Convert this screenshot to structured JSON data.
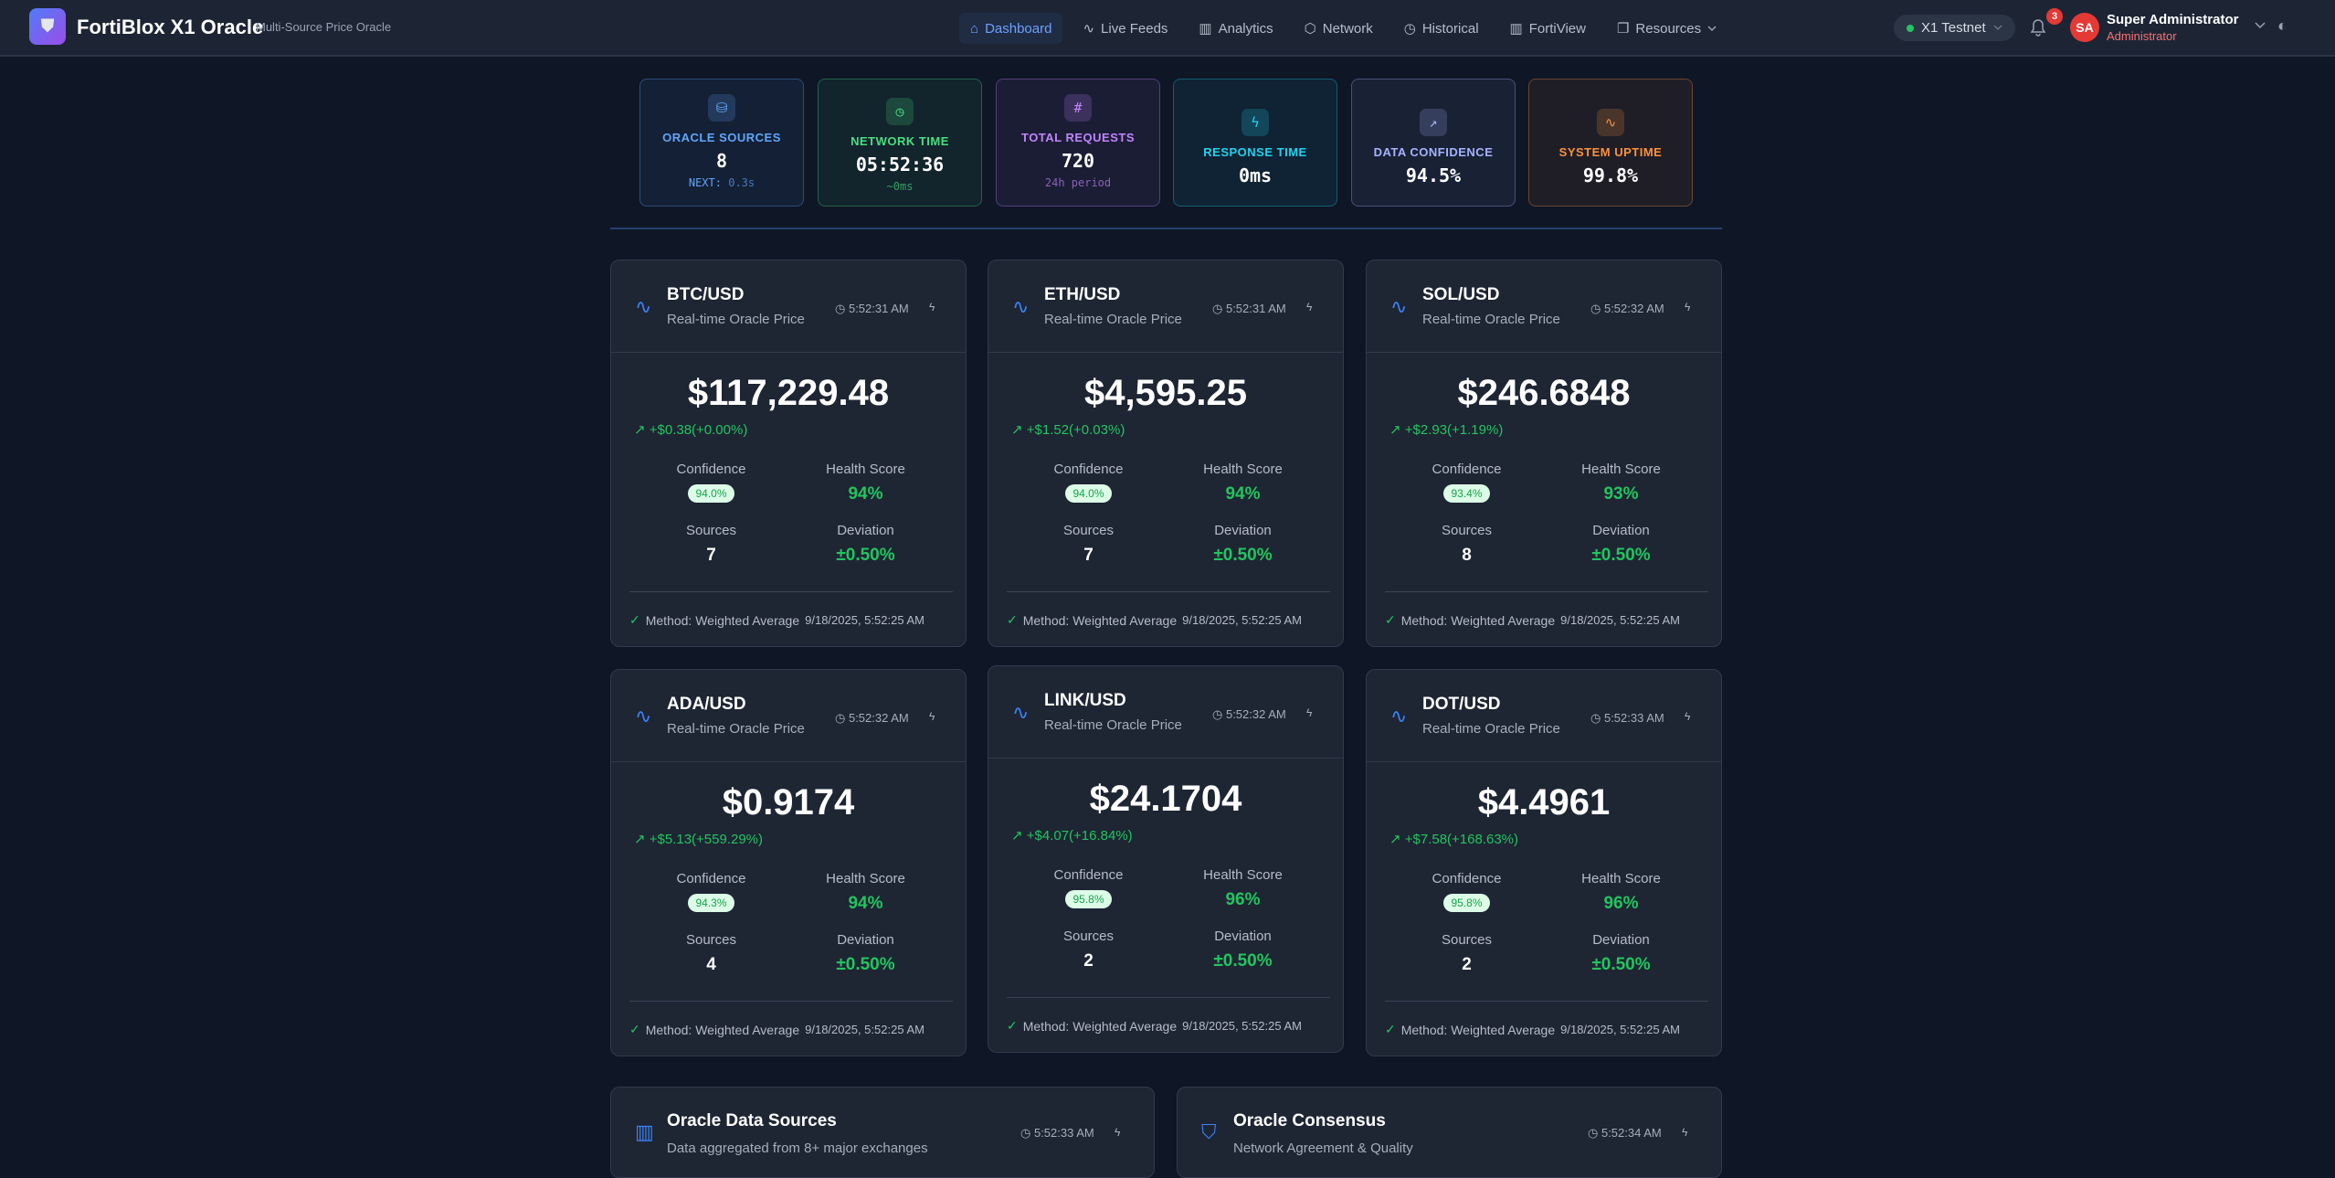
{
  "header": {
    "brand": "FortiBlox X1 Oracle",
    "tagline": "Multi-Source Price Oracle",
    "nav": [
      {
        "label": "Dashboard",
        "icon": "⌂"
      },
      {
        "label": "Live Feeds",
        "icon": "∿"
      },
      {
        "label": "Analytics",
        "icon": "▥"
      },
      {
        "label": "Network",
        "icon": "⬡"
      },
      {
        "label": "Historical",
        "icon": "◷"
      },
      {
        "label": "FortiView",
        "icon": "▥"
      },
      {
        "label": "Resources",
        "icon": "❐"
      }
    ],
    "network": "X1 Testnet",
    "notifications": "3",
    "avatar": "SA",
    "user_name": "Super Administrator",
    "user_role": "Administrator"
  },
  "stats": [
    {
      "label": "ORACLE SOURCES",
      "value": "8",
      "sub_label": "NEXT:",
      "sub_value": "0.3s",
      "color": "#60a5fa",
      "icon": "database"
    },
    {
      "label": "NETWORK TIME",
      "value": "05:52:36",
      "sub_label": "",
      "sub_value": "~0ms",
      "color": "#4ade80",
      "icon": "clock"
    },
    {
      "label": "TOTAL REQUESTS",
      "value": "720",
      "sub_label": "",
      "sub_value": "24h period",
      "color": "#c084fc",
      "icon": "hash"
    },
    {
      "label": "RESPONSE TIME",
      "value": "0ms",
      "sub_label": "",
      "sub_value": "",
      "color": "#22d3ee",
      "icon": "zap"
    },
    {
      "label": "DATA CONFIDENCE",
      "value": "94.5%",
      "sub_label": "",
      "sub_value": "",
      "color": "#a5b4fc",
      "icon": "trend"
    },
    {
      "label": "SYSTEM UPTIME",
      "value": "99.8%",
      "sub_label": "",
      "sub_value": "",
      "color": "#fb923c",
      "icon": "activity"
    }
  ],
  "card_labels": {
    "subtitle": "Real-time Oracle Price",
    "confidence": "Confidence",
    "health": "Health Score",
    "sources": "Sources",
    "deviation": "Deviation",
    "method": "Method: Weighted Average"
  },
  "cards": [
    {
      "pair": "BTC/USD",
      "time": "5:52:31 AM",
      "price": "$117,229.48",
      "delta": "+$0.38(+0.00%)",
      "confidence": "94.0%",
      "health": "94%",
      "sources": "7",
      "deviation": "±0.50%",
      "updated": "9/18/2025, 5:52:25 AM"
    },
    {
      "pair": "ETH/USD",
      "time": "5:52:31 AM",
      "price": "$4,595.25",
      "delta": "+$1.52(+0.03%)",
      "confidence": "94.0%",
      "health": "94%",
      "sources": "7",
      "deviation": "±0.50%",
      "updated": "9/18/2025, 5:52:25 AM"
    },
    {
      "pair": "SOL/USD",
      "time": "5:52:32 AM",
      "price": "$246.6848",
      "delta": "+$2.93(+1.19%)",
      "confidence": "93.4%",
      "health": "93%",
      "sources": "8",
      "deviation": "±0.50%",
      "updated": "9/18/2025, 5:52:25 AM"
    },
    {
      "pair": "ADA/USD",
      "time": "5:52:32 AM",
      "price": "$0.9174",
      "delta": "+$5.13(+559.29%)",
      "confidence": "94.3%",
      "health": "94%",
      "sources": "4",
      "deviation": "±0.50%",
      "updated": "9/18/2025, 5:52:25 AM"
    },
    {
      "pair": "LINK/USD",
      "time": "5:52:32 AM",
      "price": "$24.1704",
      "delta": "+$4.07(+16.84%)",
      "confidence": "95.8%",
      "health": "96%",
      "sources": "2",
      "deviation": "±0.50%",
      "updated": "9/18/2025, 5:52:25 AM"
    },
    {
      "pair": "DOT/USD",
      "time": "5:52:33 AM",
      "price": "$4.4961",
      "delta": "+$7.58(+168.63%)",
      "confidence": "95.8%",
      "health": "96%",
      "sources": "2",
      "deviation": "±0.50%",
      "updated": "9/18/2025, 5:52:25 AM"
    }
  ],
  "panels": [
    {
      "title": "Oracle Data Sources",
      "subtitle": "Data aggregated from 8+ major exchanges",
      "time": "5:52:33 AM",
      "icon": "bar-chart"
    },
    {
      "title": "Oracle Consensus",
      "subtitle": "Network Agreement & Quality",
      "time": "5:52:34 AM",
      "icon": "shield"
    }
  ]
}
